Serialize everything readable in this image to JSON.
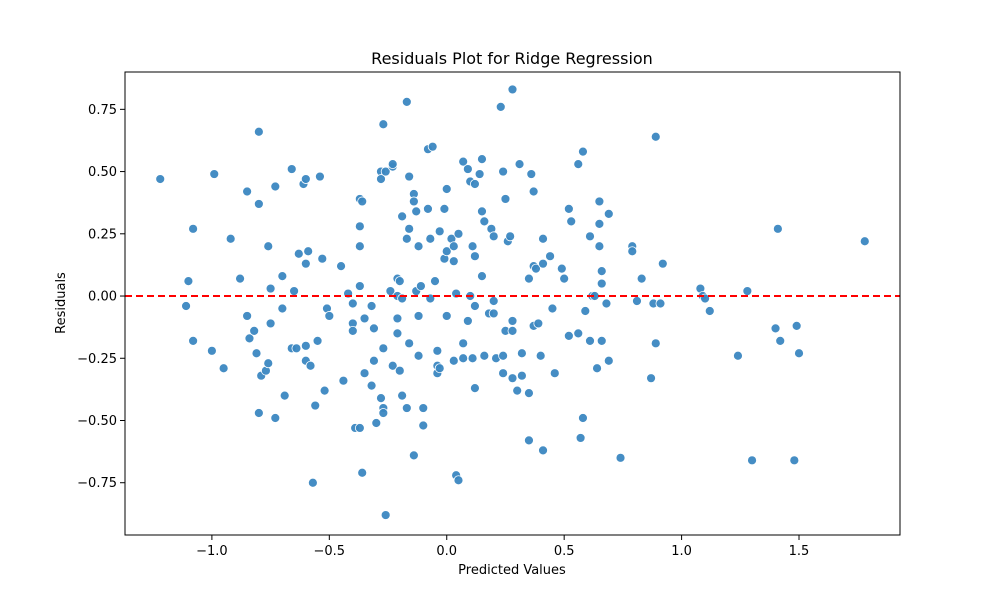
{
  "chart_data": {
    "type": "scatter",
    "title": "Residuals Plot for Ridge Regression",
    "xlabel": "Predicted Values",
    "ylabel": "Residuals",
    "xlim": [
      -1.37,
      1.93
    ],
    "ylim": [
      -0.96,
      0.9
    ],
    "x_ticks": [
      -1.0,
      -0.5,
      0.0,
      0.5,
      1.0,
      1.5
    ],
    "x_tick_labels": [
      "−1.0",
      "−0.5",
      "0.0",
      "0.5",
      "1.0",
      "1.5"
    ],
    "y_ticks": [
      -0.75,
      -0.5,
      -0.25,
      0.0,
      0.25,
      0.5,
      0.75
    ],
    "y_tick_labels": [
      "−0.75",
      "−0.50",
      "−0.25",
      "0.00",
      "0.25",
      "0.50",
      "0.75"
    ],
    "grid": false,
    "reference_line": {
      "y": 0.0,
      "style": "dashed",
      "color": "#ff0000"
    },
    "point_color": "#3b87c1",
    "points": [
      {
        "x": -1.22,
        "y": 0.47
      },
      {
        "x": -1.08,
        "y": 0.27
      },
      {
        "x": -1.1,
        "y": 0.06
      },
      {
        "x": -1.11,
        "y": -0.04
      },
      {
        "x": -1.08,
        "y": -0.18
      },
      {
        "x": -0.99,
        "y": 0.49
      },
      {
        "x": -1.0,
        "y": -0.22
      },
      {
        "x": -0.95,
        "y": -0.29
      },
      {
        "x": -0.92,
        "y": 0.23
      },
      {
        "x": -0.88,
        "y": 0.07
      },
      {
        "x": -0.85,
        "y": 0.42
      },
      {
        "x": -0.84,
        "y": -0.17
      },
      {
        "x": -0.85,
        "y": -0.08
      },
      {
        "x": -0.8,
        "y": 0.66
      },
      {
        "x": -0.8,
        "y": 0.37
      },
      {
        "x": -0.82,
        "y": -0.14
      },
      {
        "x": -0.81,
        "y": -0.23
      },
      {
        "x": -0.79,
        "y": -0.32
      },
      {
        "x": -0.77,
        "y": -0.3
      },
      {
        "x": -0.8,
        "y": -0.47
      },
      {
        "x": -0.76,
        "y": 0.2
      },
      {
        "x": -0.75,
        "y": 0.03
      },
      {
        "x": -0.75,
        "y": -0.11
      },
      {
        "x": -0.76,
        "y": -0.27
      },
      {
        "x": -0.73,
        "y": 0.44
      },
      {
        "x": -0.73,
        "y": -0.49
      },
      {
        "x": -0.7,
        "y": 0.08
      },
      {
        "x": -0.7,
        "y": -0.05
      },
      {
        "x": -0.69,
        "y": -0.4
      },
      {
        "x": -0.66,
        "y": 0.51
      },
      {
        "x": -0.65,
        "y": 0.02
      },
      {
        "x": -0.66,
        "y": -0.21
      },
      {
        "x": -0.64,
        "y": -0.21
      },
      {
        "x": -0.63,
        "y": 0.17
      },
      {
        "x": -0.61,
        "y": 0.45
      },
      {
        "x": -0.6,
        "y": 0.47
      },
      {
        "x": -0.6,
        "y": 0.13
      },
      {
        "x": -0.59,
        "y": 0.18
      },
      {
        "x": -0.6,
        "y": -0.2
      },
      {
        "x": -0.6,
        "y": -0.26
      },
      {
        "x": -0.58,
        "y": -0.28
      },
      {
        "x": -0.57,
        "y": -0.75
      },
      {
        "x": -0.56,
        "y": -0.44
      },
      {
        "x": -0.54,
        "y": 0.48
      },
      {
        "x": -0.53,
        "y": 0.15
      },
      {
        "x": -0.55,
        "y": -0.18
      },
      {
        "x": -0.51,
        "y": -0.05
      },
      {
        "x": -0.52,
        "y": -0.38
      },
      {
        "x": -0.5,
        "y": -0.08
      },
      {
        "x": -0.45,
        "y": 0.12
      },
      {
        "x": -0.44,
        "y": -0.34
      },
      {
        "x": -0.42,
        "y": 0.01
      },
      {
        "x": -0.4,
        "y": -0.03
      },
      {
        "x": -0.4,
        "y": -0.11
      },
      {
        "x": -0.4,
        "y": -0.14
      },
      {
        "x": -0.39,
        "y": -0.53
      },
      {
        "x": -0.37,
        "y": 0.39
      },
      {
        "x": -0.37,
        "y": 0.28
      },
      {
        "x": -0.37,
        "y": 0.2
      },
      {
        "x": -0.37,
        "y": 0.04
      },
      {
        "x": -0.37,
        "y": -0.53
      },
      {
        "x": -0.36,
        "y": -0.71
      },
      {
        "x": -0.36,
        "y": 0.38
      },
      {
        "x": -0.35,
        "y": -0.09
      },
      {
        "x": -0.35,
        "y": -0.31
      },
      {
        "x": -0.32,
        "y": -0.04
      },
      {
        "x": -0.31,
        "y": -0.26
      },
      {
        "x": -0.32,
        "y": -0.36
      },
      {
        "x": -0.3,
        "y": -0.51
      },
      {
        "x": -0.31,
        "y": -0.13
      },
      {
        "x": -0.28,
        "y": 0.5
      },
      {
        "x": -0.28,
        "y": 0.47
      },
      {
        "x": -0.28,
        "y": -0.41
      },
      {
        "x": -0.27,
        "y": 0.69
      },
      {
        "x": -0.27,
        "y": -0.21
      },
      {
        "x": -0.27,
        "y": -0.45
      },
      {
        "x": -0.27,
        "y": -0.47
      },
      {
        "x": -0.26,
        "y": -0.88
      },
      {
        "x": -0.26,
        "y": 0.5
      },
      {
        "x": -0.23,
        "y": 0.52
      },
      {
        "x": -0.23,
        "y": 0.53
      },
      {
        "x": -0.24,
        "y": 0.02
      },
      {
        "x": -0.23,
        "y": -0.28
      },
      {
        "x": -0.21,
        "y": 0.07
      },
      {
        "x": -0.21,
        "y": 0.0
      },
      {
        "x": -0.21,
        "y": -0.09
      },
      {
        "x": -0.21,
        "y": -0.15
      },
      {
        "x": -0.2,
        "y": 0.06
      },
      {
        "x": -0.2,
        "y": -0.3
      },
      {
        "x": -0.19,
        "y": -0.4
      },
      {
        "x": -0.19,
        "y": -0.01
      },
      {
        "x": -0.19,
        "y": 0.32
      },
      {
        "x": -0.17,
        "y": 0.78
      },
      {
        "x": -0.16,
        "y": 0.48
      },
      {
        "x": -0.16,
        "y": 0.27
      },
      {
        "x": -0.17,
        "y": 0.23
      },
      {
        "x": -0.16,
        "y": -0.19
      },
      {
        "x": -0.17,
        "y": -0.45
      },
      {
        "x": -0.14,
        "y": 0.41
      },
      {
        "x": -0.14,
        "y": 0.38
      },
      {
        "x": -0.14,
        "y": -0.64
      },
      {
        "x": -0.13,
        "y": 0.34
      },
      {
        "x": -0.13,
        "y": 0.02
      },
      {
        "x": -0.12,
        "y": 0.2
      },
      {
        "x": -0.12,
        "y": -0.08
      },
      {
        "x": -0.12,
        "y": -0.24
      },
      {
        "x": -0.11,
        "y": 0.04
      },
      {
        "x": -0.1,
        "y": -0.45
      },
      {
        "x": -0.1,
        "y": -0.52
      },
      {
        "x": -0.08,
        "y": 0.59
      },
      {
        "x": -0.08,
        "y": 0.35
      },
      {
        "x": -0.07,
        "y": -0.01
      },
      {
        "x": -0.07,
        "y": 0.23
      },
      {
        "x": -0.06,
        "y": 0.6
      },
      {
        "x": -0.05,
        "y": 0.06
      },
      {
        "x": -0.04,
        "y": -0.22
      },
      {
        "x": -0.04,
        "y": -0.28
      },
      {
        "x": -0.04,
        "y": -0.31
      },
      {
        "x": -0.03,
        "y": 0.26
      },
      {
        "x": -0.03,
        "y": -0.29
      },
      {
        "x": -0.01,
        "y": 0.35
      },
      {
        "x": -0.01,
        "y": 0.15
      },
      {
        "x": 0.0,
        "y": 0.43
      },
      {
        "x": 0.0,
        "y": 0.18
      },
      {
        "x": 0.0,
        "y": -0.08
      },
      {
        "x": 0.02,
        "y": 0.23
      },
      {
        "x": 0.03,
        "y": 0.14
      },
      {
        "x": 0.03,
        "y": 0.2
      },
      {
        "x": 0.04,
        "y": 0.01
      },
      {
        "x": 0.03,
        "y": -0.26
      },
      {
        "x": 0.04,
        "y": -0.72
      },
      {
        "x": 0.05,
        "y": -0.74
      },
      {
        "x": 0.05,
        "y": 0.25
      },
      {
        "x": 0.07,
        "y": 0.54
      },
      {
        "x": 0.07,
        "y": -0.19
      },
      {
        "x": 0.07,
        "y": -0.25
      },
      {
        "x": 0.09,
        "y": 0.51
      },
      {
        "x": 0.1,
        "y": 0.46
      },
      {
        "x": 0.1,
        "y": 0.0
      },
      {
        "x": 0.09,
        "y": -0.1
      },
      {
        "x": 0.11,
        "y": 0.2
      },
      {
        "x": 0.11,
        "y": -0.25
      },
      {
        "x": 0.12,
        "y": 0.45
      },
      {
        "x": 0.12,
        "y": 0.16
      },
      {
        "x": 0.12,
        "y": -0.04
      },
      {
        "x": 0.12,
        "y": -0.37
      },
      {
        "x": 0.14,
        "y": 0.49
      },
      {
        "x": 0.15,
        "y": 0.55
      },
      {
        "x": 0.15,
        "y": 0.34
      },
      {
        "x": 0.15,
        "y": 0.08
      },
      {
        "x": 0.16,
        "y": 0.3
      },
      {
        "x": 0.16,
        "y": -0.24
      },
      {
        "x": 0.18,
        "y": -0.07
      },
      {
        "x": 0.19,
        "y": 0.27
      },
      {
        "x": 0.2,
        "y": 0.24
      },
      {
        "x": 0.2,
        "y": -0.02
      },
      {
        "x": 0.2,
        "y": -0.07
      },
      {
        "x": 0.21,
        "y": -0.25
      },
      {
        "x": 0.23,
        "y": 0.76
      },
      {
        "x": 0.24,
        "y": 0.5
      },
      {
        "x": 0.24,
        "y": -0.24
      },
      {
        "x": 0.24,
        "y": -0.31
      },
      {
        "x": 0.25,
        "y": 0.39
      },
      {
        "x": 0.25,
        "y": -0.14
      },
      {
        "x": 0.26,
        "y": 0.22
      },
      {
        "x": 0.27,
        "y": 0.24
      },
      {
        "x": 0.28,
        "y": -0.14
      },
      {
        "x": 0.28,
        "y": -0.33
      },
      {
        "x": 0.28,
        "y": 0.83
      },
      {
        "x": 0.28,
        "y": -0.1
      },
      {
        "x": 0.3,
        "y": -0.38
      },
      {
        "x": 0.31,
        "y": 0.53
      },
      {
        "x": 0.32,
        "y": -0.23
      },
      {
        "x": 0.32,
        "y": -0.32
      },
      {
        "x": 0.35,
        "y": 0.07
      },
      {
        "x": 0.35,
        "y": -0.39
      },
      {
        "x": 0.35,
        "y": -0.58
      },
      {
        "x": 0.36,
        "y": 0.49
      },
      {
        "x": 0.37,
        "y": 0.12
      },
      {
        "x": 0.37,
        "y": 0.42
      },
      {
        "x": 0.37,
        "y": -0.12
      },
      {
        "x": 0.38,
        "y": 0.11
      },
      {
        "x": 0.39,
        "y": -0.11
      },
      {
        "x": 0.4,
        "y": -0.24
      },
      {
        "x": 0.41,
        "y": 0.23
      },
      {
        "x": 0.41,
        "y": 0.13
      },
      {
        "x": 0.41,
        "y": -0.62
      },
      {
        "x": 0.44,
        "y": 0.16
      },
      {
        "x": 0.45,
        "y": -0.05
      },
      {
        "x": 0.46,
        "y": -0.31
      },
      {
        "x": 0.49,
        "y": 0.11
      },
      {
        "x": 0.5,
        "y": 0.07
      },
      {
        "x": 0.52,
        "y": 0.35
      },
      {
        "x": 0.52,
        "y": -0.16
      },
      {
        "x": 0.53,
        "y": 0.3
      },
      {
        "x": 0.56,
        "y": 0.53
      },
      {
        "x": 0.56,
        "y": -0.15
      },
      {
        "x": 0.57,
        "y": -0.57
      },
      {
        "x": 0.58,
        "y": 0.58
      },
      {
        "x": 0.58,
        "y": -0.49
      },
      {
        "x": 0.59,
        "y": -0.06
      },
      {
        "x": 0.61,
        "y": 0.24
      },
      {
        "x": 0.61,
        "y": -0.18
      },
      {
        "x": 0.62,
        "y": 0.0
      },
      {
        "x": 0.63,
        "y": 0.0
      },
      {
        "x": 0.64,
        "y": -0.29
      },
      {
        "x": 0.65,
        "y": 0.38
      },
      {
        "x": 0.65,
        "y": 0.29
      },
      {
        "x": 0.65,
        "y": 0.2
      },
      {
        "x": 0.66,
        "y": 0.1
      },
      {
        "x": 0.66,
        "y": 0.05
      },
      {
        "x": 0.66,
        "y": -0.18
      },
      {
        "x": 0.68,
        "y": -0.03
      },
      {
        "x": 0.69,
        "y": 0.33
      },
      {
        "x": 0.69,
        "y": -0.26
      },
      {
        "x": 0.74,
        "y": -0.65
      },
      {
        "x": 0.79,
        "y": 0.2
      },
      {
        "x": 0.79,
        "y": 0.18
      },
      {
        "x": 0.81,
        "y": -0.02
      },
      {
        "x": 0.83,
        "y": 0.07
      },
      {
        "x": 0.87,
        "y": -0.33
      },
      {
        "x": 0.88,
        "y": -0.03
      },
      {
        "x": 0.89,
        "y": -0.19
      },
      {
        "x": 0.89,
        "y": 0.64
      },
      {
        "x": 0.91,
        "y": -0.03
      },
      {
        "x": 0.92,
        "y": 0.13
      },
      {
        "x": 1.08,
        "y": 0.03
      },
      {
        "x": 1.09,
        "y": 0.0
      },
      {
        "x": 1.1,
        "y": -0.01
      },
      {
        "x": 1.12,
        "y": -0.06
      },
      {
        "x": 1.24,
        "y": -0.24
      },
      {
        "x": 1.28,
        "y": 0.02
      },
      {
        "x": 1.3,
        "y": -0.66
      },
      {
        "x": 1.4,
        "y": -0.13
      },
      {
        "x": 1.41,
        "y": 0.27
      },
      {
        "x": 1.42,
        "y": -0.18
      },
      {
        "x": 1.48,
        "y": -0.66
      },
      {
        "x": 1.49,
        "y": -0.12
      },
      {
        "x": 1.5,
        "y": -0.23
      },
      {
        "x": 1.78,
        "y": 0.22
      }
    ]
  }
}
